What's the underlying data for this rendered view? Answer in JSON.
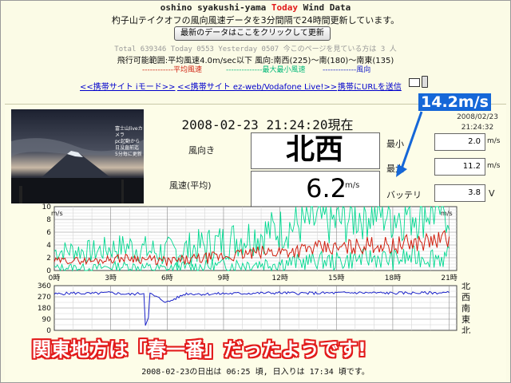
{
  "header": {
    "title_prefix": "oshino syakushi-yama",
    "title_today": "Today",
    "title_suffix": "Wind Data",
    "subtitle": "杓子山テイクオフの風向風速データを3分間隔で24時間更新しています。",
    "refresh_button": "最新のデータはここをクリックして更新"
  },
  "counter": {
    "text": "Total 639346 Today 0553 Yesterday 0507 今このページを見ている方は 3 人"
  },
  "flight_condition": "飛行可能範囲:平均風速4.0m/sec以下 風向:南西(225)～南(180)～南東(135)",
  "legend": {
    "avg": "------------平均風速",
    "max_min": "--------------最大最小風速",
    "direction": "-------------風向"
  },
  "links": {
    "imode": "<<携帯サイト iモード>>",
    "ezweb": "<<携帯サイト ez-web/Vodafone Live!>>",
    "send_url": "携帯にURLを送信"
  },
  "photo_caption": [
    "富士山liveカメラ",
    "pc起動から",
    "日没直前迄",
    "5分毎に更新"
  ],
  "datetime": "2008-02-23 21:24:20現在",
  "updated": [
    "2008/02/23",
    "21:24:32"
  ],
  "labels": {
    "direction": "風向き",
    "speed": "風速(平均)",
    "min": "最小",
    "max": "最大",
    "battery": "バッテリ",
    "unit_ms": "m/s",
    "unit_v": "V"
  },
  "values": {
    "direction": "北西",
    "speed": "6.2",
    "min": "2.0",
    "max": "11.2",
    "battery": "3.8"
  },
  "callout": "14.2m/s",
  "headline": "関東地方は「春一番」だったようです!",
  "sun_info": "2008-02-23の日出は 06:25 頃, 日入りは 17:34 頃です。",
  "colors": {
    "avg": "#d02010",
    "max_min": "#00d890",
    "direction": "#1a22c8",
    "title_today": "#e21b1b",
    "callout_bg": "#1567d8",
    "headline": "#e21b1b"
  },
  "chart_data": [
    {
      "type": "line",
      "title": "",
      "ylabel": "m/s",
      "ylim": [
        0,
        10
      ],
      "yticks": [
        "10",
        "8",
        "6",
        "4",
        "2",
        "0"
      ],
      "xticks": [
        "0時",
        "3時",
        "6時",
        "9時",
        "12時",
        "15時",
        "18時",
        "21時"
      ],
      "x": [
        0,
        1,
        2,
        3,
        4,
        5,
        6,
        7,
        8,
        9,
        10,
        11,
        12,
        13,
        14,
        15,
        16,
        17,
        18,
        19,
        20,
        21
      ],
      "series": [
        {
          "name": "平均風速",
          "values": [
            1.5,
            1.6,
            1.5,
            1.8,
            2.0,
            1.7,
            1.4,
            1.6,
            1.9,
            2.2,
            2.5,
            2.8,
            3.0,
            3.2,
            3.5,
            3.4,
            3.8,
            4.1,
            3.9,
            4.3,
            4.6,
            5.0
          ]
        },
        {
          "name": "最大風速",
          "values": [
            3.0,
            3.2,
            2.9,
            3.5,
            3.8,
            3.1,
            2.8,
            3.3,
            3.9,
            4.5,
            5.2,
            5.8,
            6.5,
            7.2,
            7.8,
            7.5,
            8.6,
            9.4,
            8.8,
            9.2,
            9.8,
            10.0
          ]
        },
        {
          "name": "最小風速",
          "values": [
            0.4,
            0.5,
            0.3,
            0.6,
            0.7,
            0.4,
            0.2,
            0.5,
            0.6,
            0.8,
            1.0,
            1.1,
            1.2,
            1.3,
            1.6,
            1.4,
            1.8,
            2.0,
            1.7,
            2.1,
            2.2,
            2.0
          ]
        }
      ]
    },
    {
      "type": "line",
      "title": "",
      "ylim": [
        0,
        360
      ],
      "yticks": [
        "360",
        "270",
        "180",
        "90",
        "0"
      ],
      "direction_labels": [
        "北",
        "西",
        "南",
        "東",
        "北"
      ],
      "x": [
        0,
        1,
        2,
        3,
        4,
        5,
        6,
        7,
        8,
        9,
        10,
        11,
        12,
        13,
        14,
        15,
        16,
        17,
        18,
        19,
        20,
        21
      ],
      "series": [
        {
          "name": "風向",
          "values": [
            292,
            300,
            296,
            303,
            290,
            302,
            225,
            296,
            292,
            296,
            298,
            300,
            302,
            299,
            300,
            301,
            303,
            302,
            300,
            301,
            302,
            303
          ]
        }
      ]
    }
  ]
}
